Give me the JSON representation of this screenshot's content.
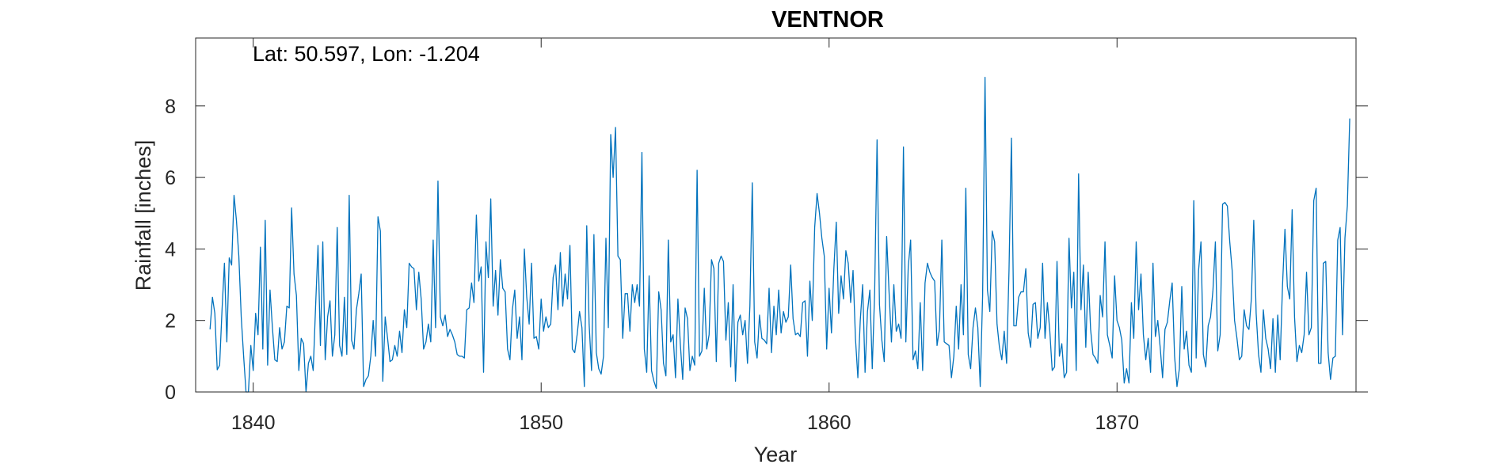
{
  "chart_data": {
    "type": "line",
    "title": "VENTNOR",
    "xlabel": "Year",
    "ylabel": "Rainfall [inches]",
    "annotation": "Lat: 50.597, Lon: -1.204",
    "xlim": [
      1838,
      1878.3
    ],
    "ylim": [
      0,
      9.9
    ],
    "x_ticks": [
      1840,
      1850,
      1860,
      1870
    ],
    "y_ticks": [
      0,
      2,
      4,
      6,
      8
    ],
    "grid": false,
    "line_color": "#0072BD",
    "series": [
      {
        "start_year": 1838.5,
        "step_years": 0.08333,
        "values": [
          1.75,
          2.65,
          2.2,
          0.62,
          0.75,
          2.3,
          3.6,
          1.4,
          3.75,
          3.55,
          5.5,
          4.8,
          3.8,
          2.1,
          1.0,
          0.0,
          0.0,
          1.3,
          0.6,
          2.2,
          1.6,
          4.05,
          1.2,
          4.8,
          0.75,
          2.85,
          1.8,
          0.9,
          0.85,
          1.8,
          1.2,
          1.4,
          2.4,
          2.35,
          5.15,
          3.3,
          2.7,
          0.6,
          1.5,
          1.35,
          0.0,
          0.8,
          1.0,
          0.6,
          2.4,
          4.1,
          1.3,
          4.2,
          0.9,
          2.1,
          2.55,
          1.0,
          1.6,
          4.6,
          1.3,
          1.0,
          2.65,
          1.05,
          5.5,
          1.45,
          1.2,
          2.3,
          2.75,
          3.3,
          0.15,
          0.35,
          0.45,
          1.0,
          2.0,
          1.0,
          4.9,
          4.5,
          0.3,
          2.1,
          1.5,
          0.85,
          0.9,
          1.3,
          1.0,
          1.7,
          1.1,
          2.3,
          1.8,
          3.6,
          3.5,
          3.45,
          2.3,
          3.35,
          2.6,
          1.2,
          1.4,
          1.9,
          1.4,
          4.25,
          1.8,
          5.9,
          2.1,
          1.85,
          2.15,
          1.55,
          1.75,
          1.6,
          1.4,
          1.05,
          1.0,
          1.0,
          0.95,
          2.3,
          2.35,
          3.05,
          2.5,
          4.95,
          3.1,
          3.5,
          0.55,
          4.2,
          3.2,
          5.4,
          2.4,
          3.4,
          2.15,
          3.7,
          2.9,
          2.8,
          1.2,
          0.9,
          2.3,
          2.85,
          1.5,
          2.1,
          0.9,
          4.0,
          2.65,
          1.9,
          3.6,
          1.5,
          1.55,
          1.2,
          2.6,
          1.7,
          2.1,
          1.8,
          1.9,
          3.2,
          3.55,
          2.3,
          3.9,
          2.4,
          3.3,
          2.6,
          4.1,
          1.2,
          1.1,
          1.6,
          2.25,
          1.8,
          0.15,
          4.65,
          1.9,
          0.6,
          4.4,
          1.1,
          0.65,
          0.5,
          1.0,
          4.3,
          1.8,
          7.2,
          6.0,
          7.4,
          3.8,
          3.7,
          1.5,
          2.75,
          2.75,
          1.7,
          3.0,
          2.5,
          3.0,
          2.4,
          6.7,
          1.2,
          0.55,
          3.25,
          0.6,
          0.3,
          0.1,
          2.8,
          2.3,
          0.8,
          0.45,
          4.25,
          1.4,
          1.6,
          0.4,
          2.6,
          1.35,
          0.35,
          2.35,
          2.05,
          0.6,
          1.0,
          0.75,
          6.2,
          1.0,
          1.15,
          2.9,
          1.2,
          1.6,
          3.7,
          3.45,
          0.85,
          3.6,
          3.8,
          3.65,
          1.45,
          2.5,
          0.7,
          3.0,
          0.3,
          1.95,
          2.15,
          1.6,
          2.0,
          0.8,
          2.4,
          5.85,
          1.4,
          0.95,
          2.15,
          1.5,
          1.45,
          1.35,
          2.9,
          1.1,
          2.4,
          1.6,
          2.85,
          1.65,
          2.25,
          1.95,
          2.1,
          3.55,
          2.05,
          1.6,
          1.65,
          1.55,
          2.5,
          2.55,
          1.0,
          3.1,
          2.0,
          4.6,
          5.55,
          5.0,
          4.3,
          3.8,
          1.2,
          2.9,
          1.65,
          3.45,
          4.75,
          2.2,
          3.25,
          2.6,
          3.95,
          3.6,
          2.5,
          3.4,
          1.5,
          0.4,
          2.0,
          3.0,
          0.55,
          2.25,
          2.85,
          0.65,
          2.8,
          7.05,
          2.45,
          1.45,
          0.85,
          4.35,
          2.8,
          1.4,
          3.0,
          1.7,
          1.9,
          1.5,
          6.85,
          1.4,
          3.5,
          4.25,
          0.9,
          1.15,
          0.65,
          2.5,
          0.6,
          3.05,
          3.6,
          3.35,
          3.2,
          3.1,
          1.3,
          1.75,
          4.25,
          1.4,
          1.35,
          1.3,
          0.4,
          1.0,
          2.4,
          1.2,
          3.0,
          1.6,
          5.7,
          1.05,
          0.65,
          1.8,
          2.35,
          1.8,
          0.15,
          2.7,
          8.8,
          2.85,
          2.25,
          4.5,
          4.2,
          1.9,
          1.25,
          0.9,
          1.7,
          0.8,
          3.4,
          7.1,
          1.85,
          1.85,
          2.65,
          2.8,
          2.8,
          3.45,
          1.65,
          1.25,
          2.45,
          2.5,
          1.5,
          1.8,
          3.6,
          1.5,
          2.5,
          1.7,
          0.6,
          0.7,
          3.65,
          1.0,
          1.35,
          0.4,
          0.55,
          4.3,
          2.35,
          3.35,
          0.6,
          6.1,
          2.3,
          3.55,
          1.25,
          3.35,
          1.75,
          1.05,
          0.95,
          0.8,
          2.7,
          2.1,
          4.2,
          1.6,
          1.3,
          0.95,
          3.25,
          2.0,
          1.8,
          1.45,
          0.25,
          0.65,
          0.25,
          2.5,
          1.5,
          4.2,
          2.3,
          3.3,
          1.6,
          0.9,
          1.5,
          0.55,
          3.6,
          1.55,
          2.0,
          1.25,
          0.4,
          1.75,
          1.95,
          2.55,
          3.05,
          1.0,
          0.15,
          0.65,
          2.95,
          1.2,
          1.7,
          0.75,
          0.55,
          5.35,
          0.95,
          3.4,
          4.2,
          1.05,
          0.7,
          1.85,
          2.1,
          2.85,
          4.2,
          1.15,
          1.6,
          5.25,
          5.3,
          5.2,
          4.2,
          3.4,
          2.0,
          1.5,
          0.9,
          1.0,
          2.3,
          1.85,
          1.75,
          2.6,
          4.8,
          2.2,
          1.05,
          0.55,
          2.3,
          1.5,
          1.2,
          0.65,
          2.05,
          0.55,
          2.15,
          0.9,
          3.0,
          4.55,
          2.95,
          2.6,
          5.1,
          2.1,
          0.85,
          1.3,
          1.1,
          1.6,
          3.35,
          1.6,
          1.8,
          5.35,
          5.7,
          0.8,
          0.8,
          3.6,
          3.65,
          1.1,
          0.35,
          0.95,
          1.0,
          4.25,
          4.6,
          1.6,
          4.3,
          5.2,
          7.65
        ]
      }
    ]
  }
}
